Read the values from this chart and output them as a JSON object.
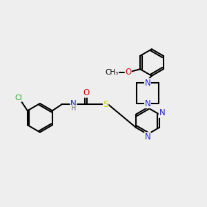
{
  "bg_color": "#eeeeee",
  "bond_color": "#000000",
  "bond_width": 1.5,
  "figsize": [
    3.0,
    3.0
  ],
  "dpi": 100,
  "colors": {
    "Cl": "#22aa22",
    "O": "#dd0000",
    "N": "#2222cc",
    "S": "#cccc00",
    "H": "#666666",
    "C": "#000000"
  }
}
